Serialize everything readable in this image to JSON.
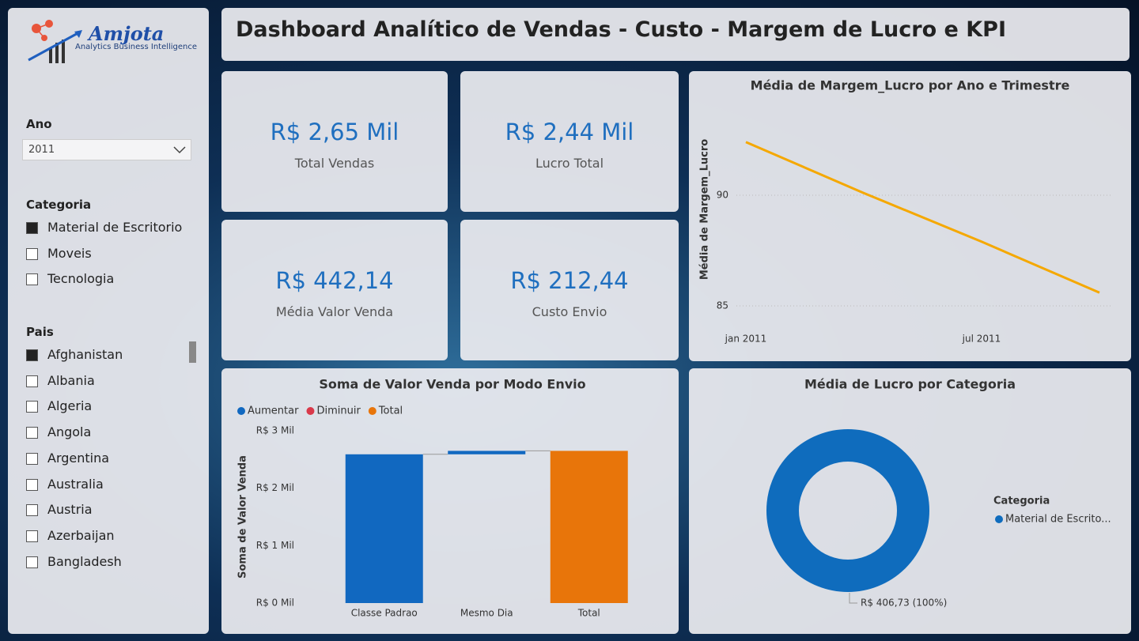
{
  "header": {
    "title": "Dashboard Analítico de Vendas - Custo - Margem de Lucro e KPI"
  },
  "sidebar": {
    "logo": {
      "name": "Amjota",
      "tagline": "Analytics Business Intelligence"
    },
    "year_filter": {
      "label": "Ano",
      "selected": "2011"
    },
    "category_filter": {
      "label": "Categoria",
      "items": [
        {
          "label": "Material de Escritorio",
          "checked": true
        },
        {
          "label": "Moveis",
          "checked": false
        },
        {
          "label": "Tecnologia",
          "checked": false
        }
      ]
    },
    "country_filter": {
      "label": "Pais",
      "items": [
        {
          "label": "Afghanistan",
          "checked": true
        },
        {
          "label": "Albania",
          "checked": false
        },
        {
          "label": "Algeria",
          "checked": false
        },
        {
          "label": "Angola",
          "checked": false
        },
        {
          "label": "Argentina",
          "checked": false
        },
        {
          "label": "Australia",
          "checked": false
        },
        {
          "label": "Austria",
          "checked": false
        },
        {
          "label": "Azerbaijan",
          "checked": false
        },
        {
          "label": "Bangladesh",
          "checked": false
        }
      ]
    }
  },
  "kpis": [
    {
      "value": "R$ 2,65 Mil",
      "label": "Total Vendas"
    },
    {
      "value": "R$ 2,44 Mil",
      "label": "Lucro Total"
    },
    {
      "value": "R$ 442,14",
      "label": "Média Valor Venda"
    },
    {
      "value": "R$ 212,44",
      "label": "Custo Envio"
    }
  ],
  "chart_data": [
    {
      "type": "line",
      "title": "Média de Margem_Lucro por Ano e Trimestre",
      "y_label": "Média de Margem_Lucro",
      "categories": [
        "jan 2011",
        null,
        "jul 2011",
        null
      ],
      "series": [
        {
          "name": "Média de Margem_Lucro",
          "color": "#f5a800",
          "values": [
            92.4,
            90.1,
            87.9,
            85.6
          ]
        }
      ],
      "ylim": [
        84,
        94
      ],
      "yticks": [
        85,
        90
      ],
      "grid": true
    },
    {
      "type": "waterfall",
      "title": "Soma de Valor Venda por Modo Envio",
      "y_label": "Soma de Valor Venda",
      "legend": [
        {
          "name": "Aumentar",
          "color": "#1168c0"
        },
        {
          "name": "Diminuir",
          "color": "#d9394a"
        },
        {
          "name": "Total",
          "color": "#e8750a"
        }
      ],
      "categories": [
        "Classe Padrao",
        "Mesmo Dia",
        "Total"
      ],
      "values": [
        2590,
        60,
        2650
      ],
      "colors": [
        "#1168c0",
        "#1168c0",
        "#e8750a"
      ],
      "total": [
        false,
        false,
        true
      ],
      "ylim": [
        0,
        3000
      ],
      "yticks": [
        {
          "value": 0,
          "label": "R$ 0 Mil"
        },
        {
          "value": 1000,
          "label": "R$ 1 Mil"
        },
        {
          "value": 2000,
          "label": "R$ 2 Mil"
        },
        {
          "value": 3000,
          "label": "R$ 3 Mil"
        }
      ]
    },
    {
      "type": "donut",
      "title": "Média de Lucro por Categoria",
      "legend_title": "Categoria",
      "categories": [
        "Material de Escrito..."
      ],
      "values": [
        406.73
      ],
      "value_labels": [
        "R$ 406,73 (100%)"
      ],
      "colors": [
        "#0f6cbd"
      ]
    }
  ]
}
